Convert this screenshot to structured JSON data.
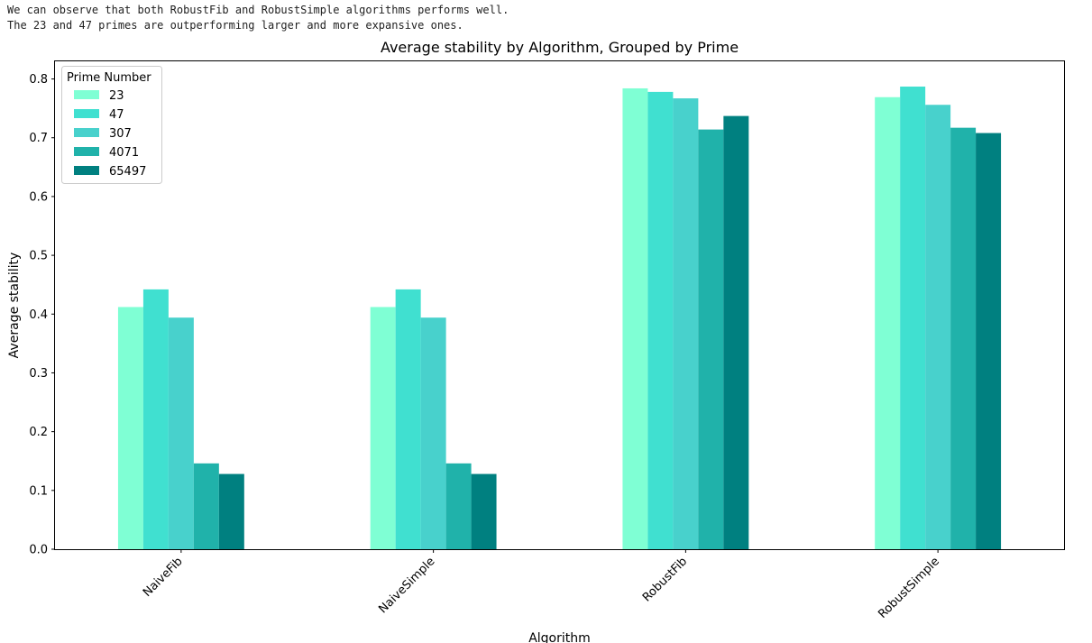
{
  "notes": {
    "line1": "We can observe that both RobustFib and RobustSimple algorithms performs well.",
    "line2": "The 23 and 47 primes are outperforming larger and more expansive ones."
  },
  "chart_data": {
    "type": "bar",
    "title": "Average stability by Algorithm, Grouped by Prime",
    "xlabel": "Algorithm",
    "ylabel": "Average stability",
    "categories": [
      "NaiveFib",
      "NaiveSimple",
      "RobustFib",
      "RobustSimple"
    ],
    "ylim": [
      0,
      0.83
    ],
    "yticks": [
      "0.0",
      "0.1",
      "0.2",
      "0.3",
      "0.4",
      "0.5",
      "0.6",
      "0.7",
      "0.8"
    ],
    "grid": false,
    "legend": {
      "title": "Prime Number",
      "placement": "top-left"
    },
    "series": [
      {
        "name": "23",
        "color": "#7fffd4",
        "values": [
          0.412,
          0.412,
          0.784,
          0.769
        ]
      },
      {
        "name": "47",
        "color": "#40e0d0",
        "values": [
          0.442,
          0.442,
          0.778,
          0.787
        ]
      },
      {
        "name": "307",
        "color": "#48d1cc",
        "values": [
          0.394,
          0.394,
          0.767,
          0.756
        ]
      },
      {
        "name": "4071",
        "color": "#20b2aa",
        "values": [
          0.146,
          0.146,
          0.714,
          0.717
        ]
      },
      {
        "name": "65497",
        "color": "#008080",
        "values": [
          0.128,
          0.128,
          0.737,
          0.708
        ]
      }
    ]
  }
}
